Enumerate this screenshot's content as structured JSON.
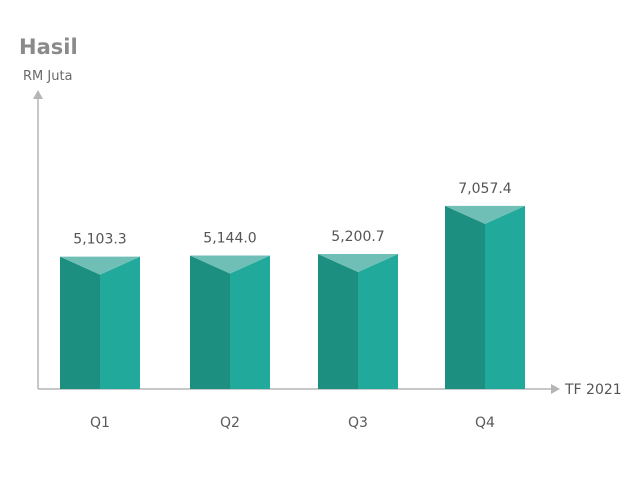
{
  "chart_data": {
    "type": "bar",
    "title": "Hasil",
    "ylabel": "RM Juta",
    "xlabel": "TF 2021",
    "categories": [
      "Q1",
      "Q2",
      "Q3",
      "Q4"
    ],
    "values": [
      5103.3,
      5144.0,
      5200.7,
      7057.4
    ],
    "value_labels": [
      "5,103.3",
      "5,144.0",
      "5,200.7",
      "7,057.4"
    ],
    "ylim": [
      0,
      8500
    ],
    "grid": false,
    "legend": "none",
    "colors": {
      "front_left": "#1d8f80",
      "front_right": "#21aa9c",
      "top": "#6fbfb7",
      "axis": "#b5b5b5"
    }
  }
}
